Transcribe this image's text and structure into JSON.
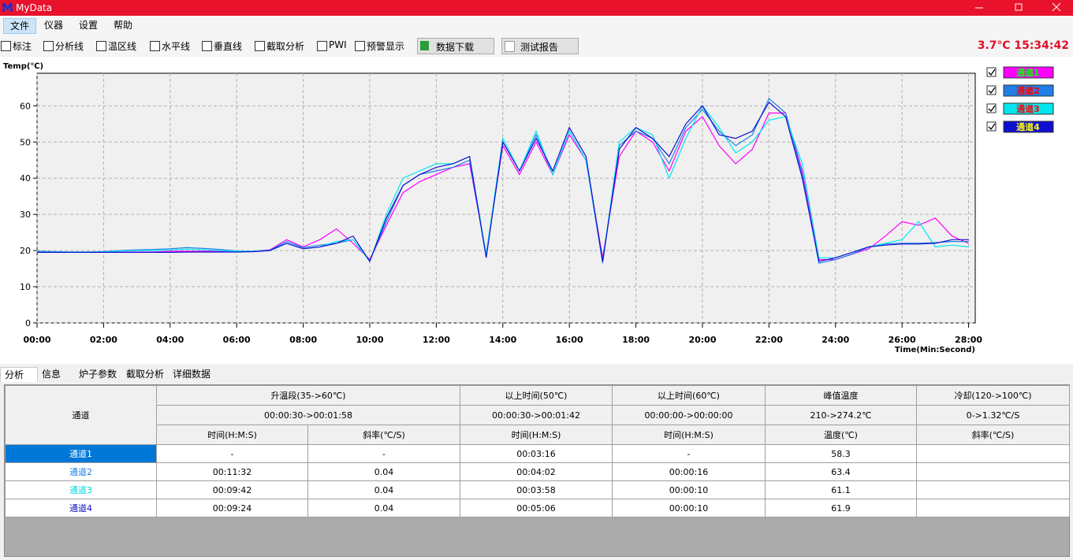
{
  "window": {
    "icon": "M",
    "title": "MyData"
  },
  "menu": [
    "文件",
    "仪器",
    "设置",
    "帮助"
  ],
  "toolbar": {
    "checkboxes": [
      "标注",
      "分析线",
      "温区线",
      "水平线",
      "垂直线",
      "截取分析",
      "PWI",
      "预警显示"
    ],
    "buttons": [
      "数据下载",
      "测试报告"
    ],
    "status": "3.7℃ 15:34:42"
  },
  "chart_data": {
    "type": "line",
    "y_label": "Temp(℃)",
    "x_label": "Time(Min:Second)",
    "x": [
      0,
      0.5,
      1,
      1.5,
      2,
      2.5,
      3,
      3.5,
      4,
      4.5,
      5,
      5.5,
      6,
      6.5,
      7,
      7.5,
      8,
      8.5,
      9,
      9.5,
      10,
      10.5,
      11,
      11.5,
      12,
      12.5,
      13,
      13.5,
      14,
      14.5,
      15,
      15.5,
      16,
      16.5,
      17,
      17.5,
      18,
      18.5,
      19,
      19.5,
      20,
      20.5,
      21,
      21.5,
      22,
      22.5,
      23,
      23.5,
      24,
      24.5,
      25,
      25.5,
      26,
      26.5,
      27,
      27.5,
      28
    ],
    "xlim": [
      0,
      28.2
    ],
    "xticks": [
      {
        "value": 0,
        "label": "00:00"
      },
      {
        "value": 2,
        "label": "02:00"
      },
      {
        "value": 4,
        "label": "04:00"
      },
      {
        "value": 6,
        "label": "06:00"
      },
      {
        "value": 8,
        "label": "08:00"
      },
      {
        "value": 10,
        "label": "10:00"
      },
      {
        "value": 12,
        "label": "12:00"
      },
      {
        "value": 14,
        "label": "14:00"
      },
      {
        "value": 16,
        "label": "16:00"
      },
      {
        "value": 18,
        "label": "18:00"
      },
      {
        "value": 20,
        "label": "20:00"
      },
      {
        "value": 22,
        "label": "22:00"
      },
      {
        "value": 24,
        "label": "24:00"
      },
      {
        "value": 26,
        "label": "26:00"
      },
      {
        "value": 28,
        "label": "28:00"
      }
    ],
    "ylim": [
      0,
      69
    ],
    "yticks": [
      0,
      10,
      20,
      30,
      40,
      50,
      60
    ],
    "grid": true,
    "series": [
      {
        "name": "通道1",
        "color": "#ff00ff",
        "legend_text_color": "#00ff00",
        "values": [
          19.8,
          19.6,
          19.5,
          19.5,
          19.5,
          19.6,
          19.6,
          19.6,
          19.8,
          19.8,
          19.8,
          19.8,
          19.7,
          19.8,
          20.2,
          23,
          21,
          23,
          26,
          22,
          17.5,
          27,
          36,
          39,
          41,
          43,
          44,
          19,
          49,
          41,
          50,
          41,
          52,
          45,
          18,
          46,
          53,
          50,
          42,
          53,
          57,
          49,
          44,
          48,
          58,
          58,
          42,
          17.5,
          17.5,
          19,
          20.5,
          24,
          28,
          27,
          29,
          24,
          22
        ]
      },
      {
        "name": "通道2",
        "color": "#1f7fe8",
        "legend_text_color": "#ff0000",
        "values": [
          19.8,
          19.7,
          19.6,
          19.6,
          19.7,
          20,
          20.2,
          20.3,
          20.5,
          20.8,
          20.6,
          20.3,
          19.9,
          19.8,
          20.1,
          22.5,
          20.8,
          21.5,
          22,
          23,
          17.2,
          28,
          38,
          41,
          42,
          43,
          45,
          18.5,
          50,
          42,
          52,
          41,
          53,
          45,
          16.5,
          49,
          53,
          51,
          44,
          54,
          59,
          53,
          49,
          52,
          62,
          58,
          41,
          16.5,
          17.5,
          19,
          21,
          21.8,
          22,
          22,
          22.2,
          22.5,
          22.5
        ]
      },
      {
        "name": "通道3",
        "color": "#00e5ee",
        "legend_text_color": "#ff0000",
        "values": [
          19.6,
          19.6,
          19.6,
          19.6,
          19.6,
          19.9,
          20,
          20,
          20.2,
          20.4,
          20.2,
          20,
          19.8,
          19.8,
          20,
          22,
          20.5,
          21,
          22.5,
          23,
          17,
          30,
          40,
          42,
          44,
          44,
          46,
          19,
          51,
          42,
          53,
          41,
          53,
          45,
          17,
          50,
          54,
          52,
          40,
          51,
          60,
          54,
          47,
          50,
          56,
          57,
          44,
          18,
          18,
          19.5,
          21,
          22,
          23,
          28,
          21,
          21.5,
          21
        ]
      },
      {
        "name": "通道4",
        "color": "#1010d0",
        "legend_text_color": "#ffff00",
        "values": [
          19.5,
          19.5,
          19.5,
          19.5,
          19.5,
          19.5,
          19.5,
          19.5,
          19.5,
          19.6,
          19.6,
          19.6,
          19.6,
          19.7,
          20,
          22,
          20.5,
          21,
          22,
          24,
          17,
          29,
          38,
          41,
          43,
          44,
          46,
          18,
          50,
          42,
          51,
          42,
          54,
          46,
          17,
          48,
          54,
          51,
          46,
          55,
          60,
          52,
          51,
          53,
          61,
          57,
          40,
          17,
          18,
          19.5,
          21,
          21.5,
          21.8,
          21.8,
          22,
          23,
          23
        ]
      }
    ]
  },
  "tabs": [
    "分析",
    "信息",
    "炉子参数",
    "截取分析",
    "详细数据"
  ],
  "table": {
    "header": [
      "通道",
      "升温段(35->60℃)",
      "以上时间(50℃)",
      "以上时间(60℃)",
      "峰值温度",
      "冷却(120->100℃)"
    ],
    "ranges": [
      "00:00:30->00:01:58",
      "00:00:30->00:01:42",
      "00:00:00->00:00:00",
      "210->274.2℃",
      "0->1.32℃/S"
    ],
    "subheader": [
      "时间(H:M:S)",
      "斜率(℃/S)",
      "时间(H:M:S)",
      "时间(H:M:S)",
      "温度(℃)",
      "斜率(℃/S)"
    ],
    "rows": [
      [
        "通道1",
        "-",
        "-",
        "00:03:16",
        "-",
        "58.3"
      ],
      [
        "通道2",
        "00:11:32",
        "0.04",
        "00:04:02",
        "00:00:16",
        "63.4"
      ],
      [
        "通道3",
        "00:09:42",
        "0.04",
        "00:03:58",
        "00:00:10",
        "61.1"
      ],
      [
        "通道4",
        "00:09:24",
        "0.04",
        "00:05:06",
        "00:00:10",
        "61.9"
      ]
    ]
  }
}
